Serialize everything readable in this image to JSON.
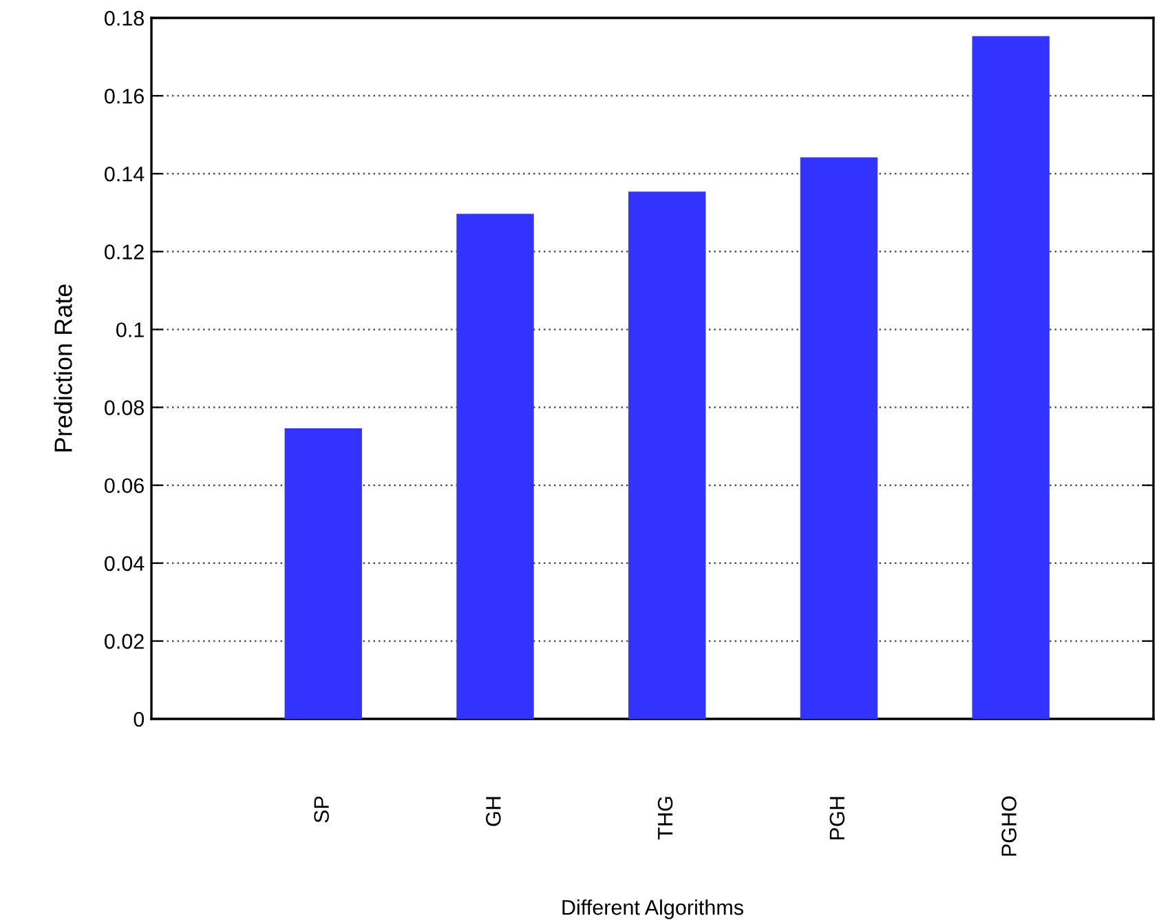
{
  "chart_data": {
    "type": "bar",
    "xlabel": "Different Algorithms",
    "ylabel": "Prediction Rate",
    "categories": [
      "SP",
      "GH",
      "THG",
      "PGH",
      "PGHO"
    ],
    "values": [
      0.0746,
      0.1297,
      0.1354,
      0.1442,
      0.1753
    ],
    "color": "#3333ff",
    "ylim": [
      0,
      0.18
    ],
    "yticks": [
      0,
      0.02,
      0.04,
      0.06,
      0.08,
      0.1,
      0.12,
      0.14,
      0.16,
      0.18
    ],
    "grid": "y"
  }
}
